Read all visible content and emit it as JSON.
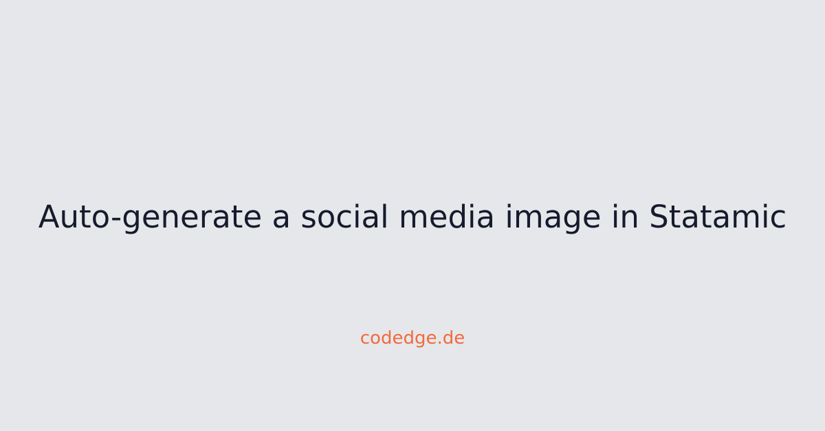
{
  "card": {
    "title": "Auto-generate a social media image in Statamic",
    "site": "codedge.de"
  },
  "colors": {
    "background": "#e5e7eb",
    "title": "#161b2c",
    "accent": "#f26a3c"
  }
}
